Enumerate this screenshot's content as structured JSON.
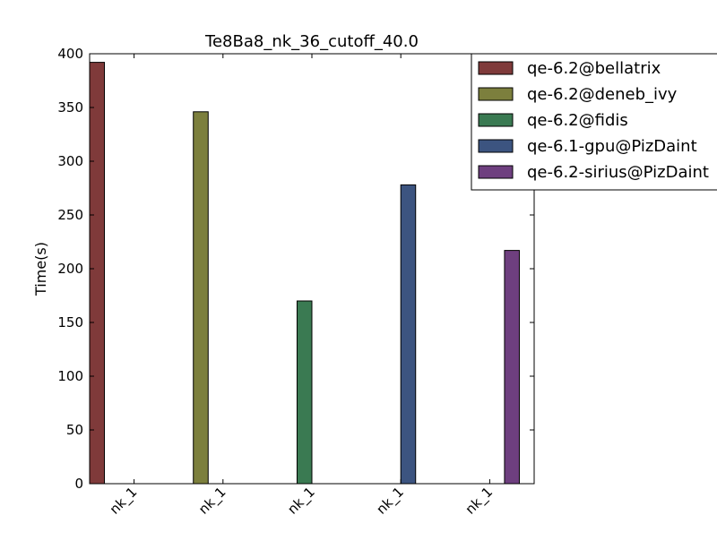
{
  "chart_data": {
    "type": "bar",
    "title": "Te8Ba8_nk_36_cutoff_40.0",
    "xlabel": "",
    "ylabel": "Time(s)",
    "ylim": [
      0,
      400
    ],
    "yticks": [
      0,
      50,
      100,
      150,
      200,
      250,
      300,
      350,
      400
    ],
    "categories": [
      "nk_1",
      "nk_1",
      "nk_1",
      "nk_1",
      "nk_1"
    ],
    "grid": false,
    "legend_position": "top-right",
    "series": [
      {
        "name": "qe-6.2@bellatrix",
        "color": "#7f3a3a",
        "values": [
          392,
          null,
          null,
          null,
          null
        ]
      },
      {
        "name": "qe-6.2@deneb_ivy",
        "color": "#7c7f3d",
        "values": [
          null,
          346,
          null,
          null,
          null
        ]
      },
      {
        "name": "qe-6.2@fidis",
        "color": "#3a7a52",
        "values": [
          null,
          null,
          170,
          null,
          null
        ]
      },
      {
        "name": "qe-6.1-gpu@PizDaint",
        "color": "#3c5480",
        "values": [
          null,
          null,
          null,
          278,
          null
        ]
      },
      {
        "name": "qe-6.2-sirius@PizDaint",
        "color": "#6e3f7f",
        "values": [
          null,
          null,
          null,
          null,
          217
        ]
      }
    ]
  }
}
